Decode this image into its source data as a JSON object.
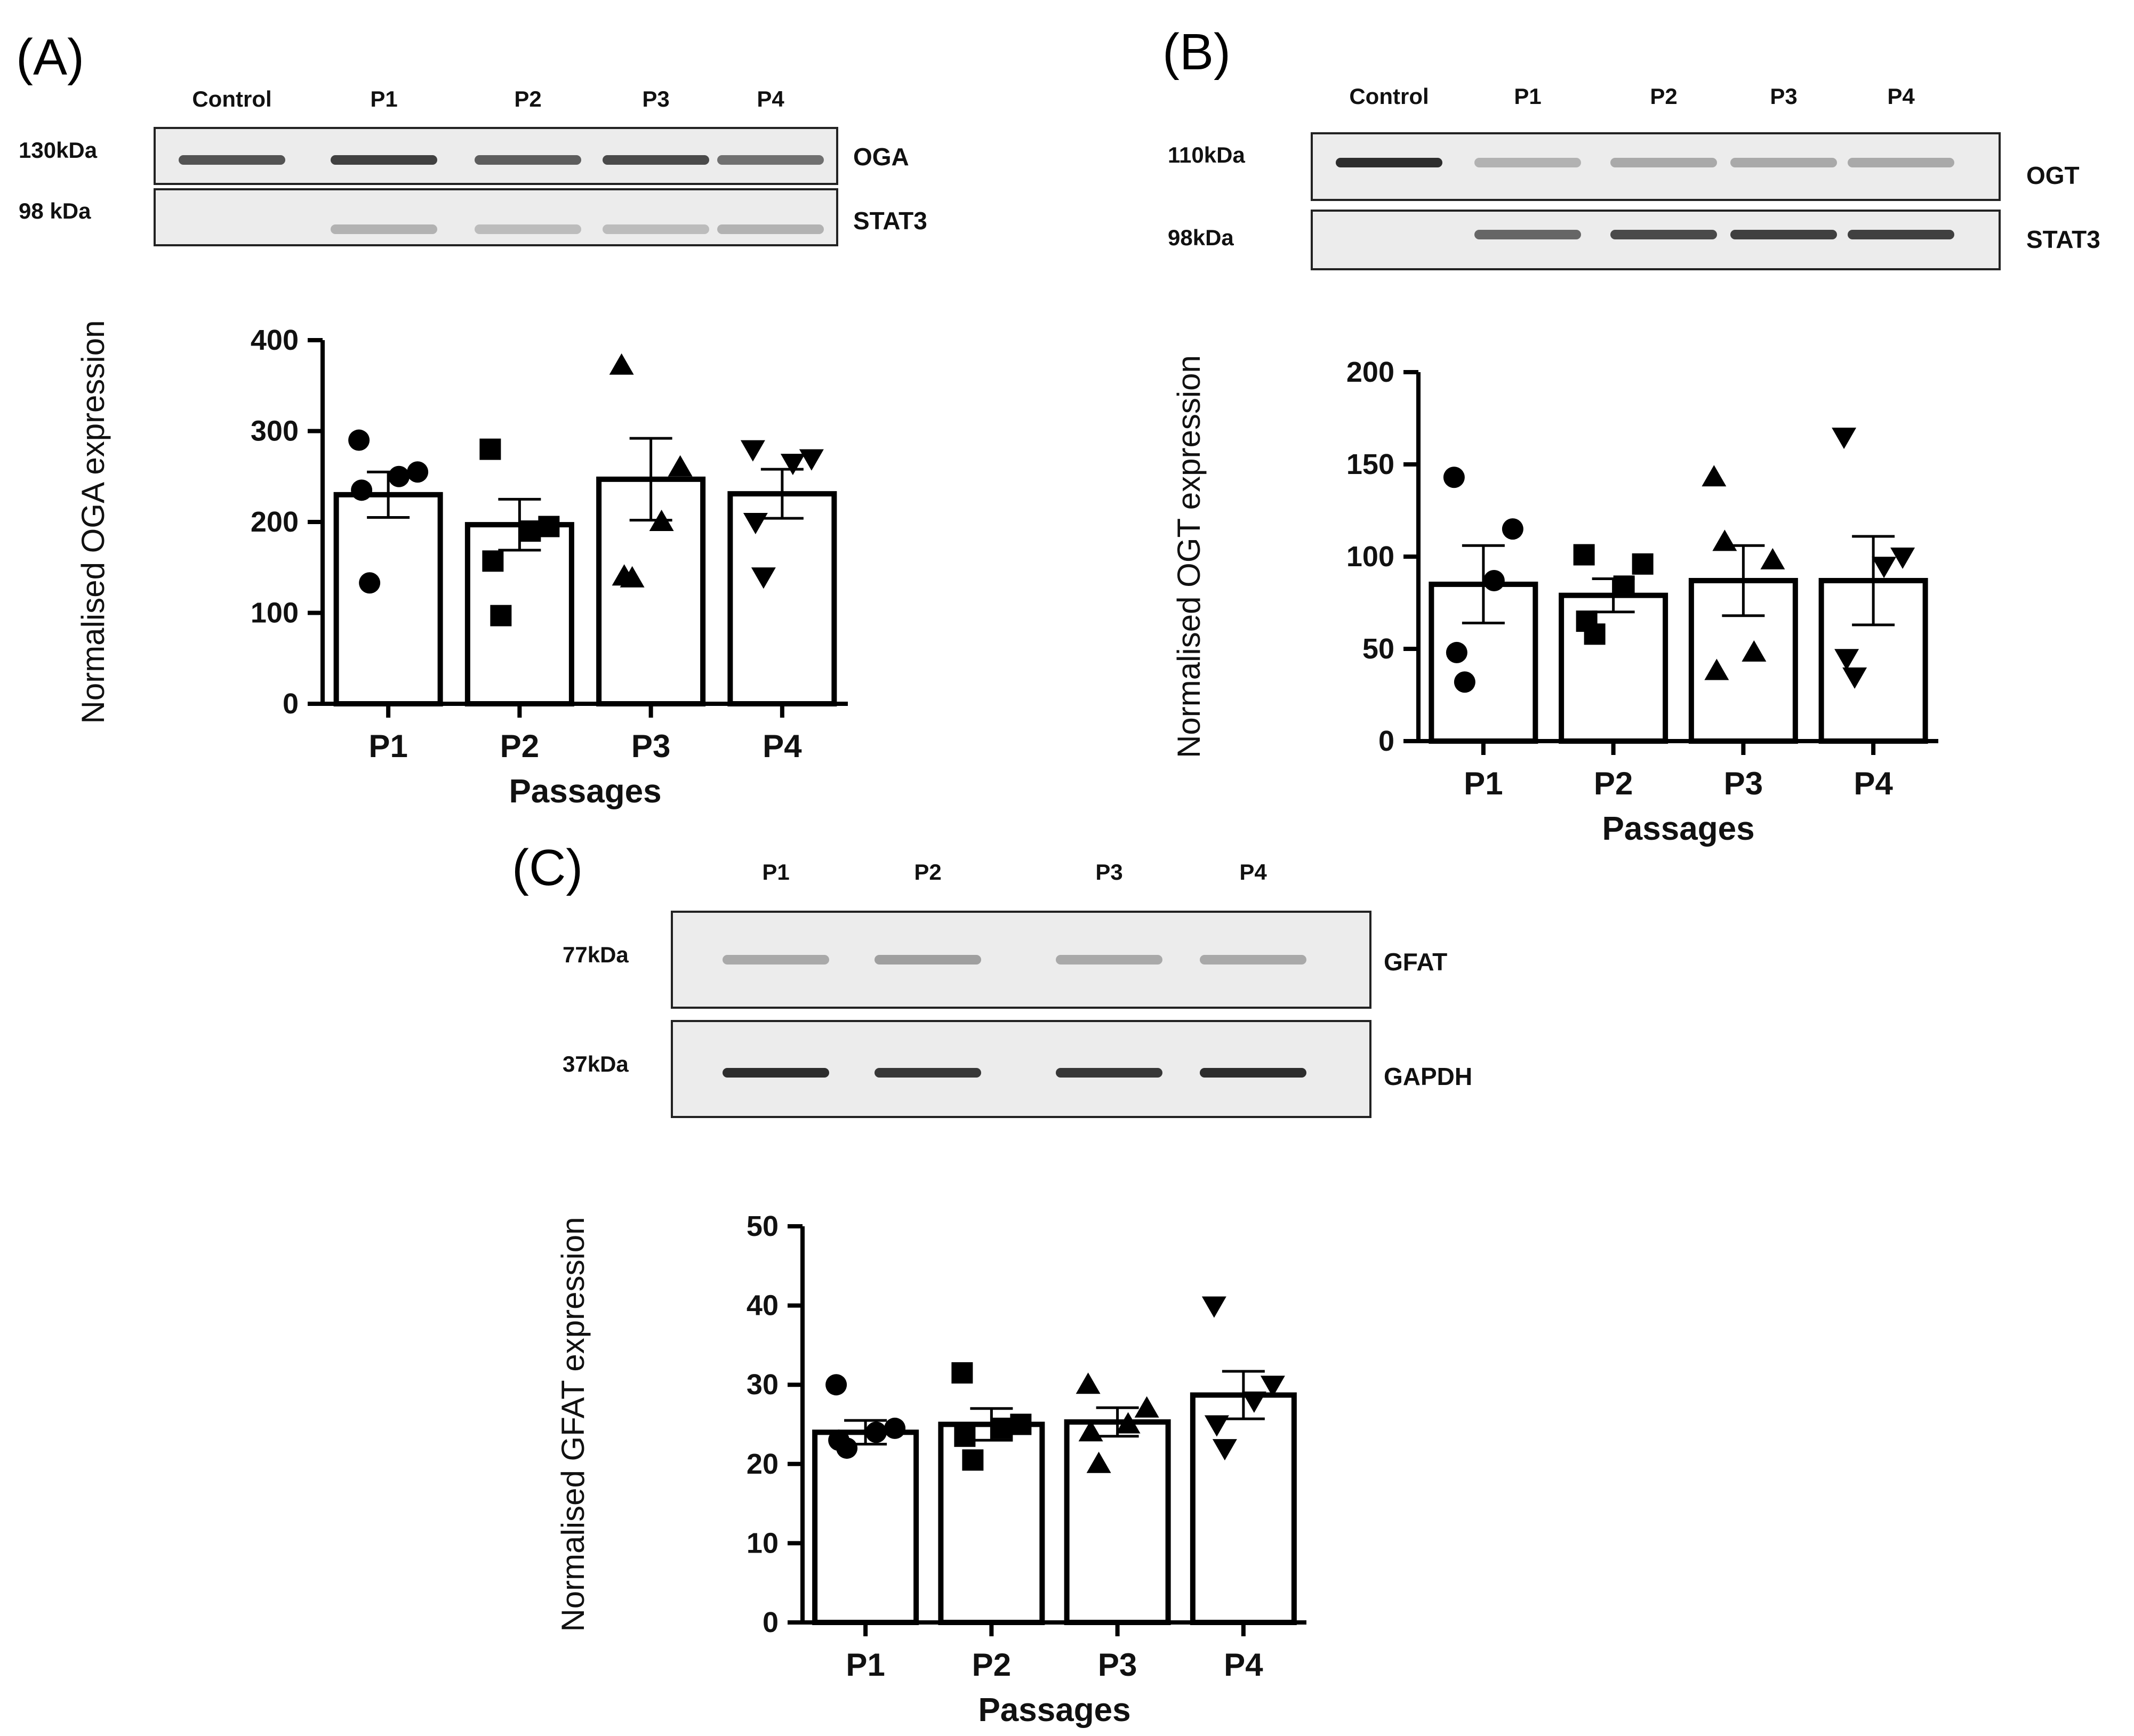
{
  "panels": [
    {
      "letter": "(A)",
      "blot": {
        "lanes": [
          "Control",
          "P1",
          "P2",
          "P3",
          "P4"
        ],
        "rows": [
          {
            "protein": "OGA",
            "size": "130kDa",
            "intensity": [
              0.75,
              0.85,
              0.7,
              0.8,
              0.6
            ]
          },
          {
            "protein": "STAT3",
            "size": "98 kDa",
            "intensity": [
              0.0,
              0.25,
              0.2,
              0.2,
              0.25
            ]
          }
        ]
      },
      "chart_data": {
        "type": "bar",
        "title": "",
        "xlabel": "Passages",
        "ylabel": "Normalised OGA expression",
        "categories": [
          "P1",
          "P2",
          "P3",
          "P4"
        ],
        "values": [
          230,
          197,
          247,
          231
        ],
        "sem": [
          25,
          28,
          45,
          27
        ],
        "points": [
          [
            290,
            255,
            250,
            235,
            133
          ],
          [
            280,
            195,
            190,
            157,
            97
          ],
          [
            372,
            260,
            200,
            140,
            138
          ],
          [
            280,
            270,
            265,
            200,
            140
          ]
        ],
        "markers": [
          "circle",
          "square",
          "triangle-up",
          "triangle-down"
        ],
        "ylim": [
          0,
          400
        ],
        "yticks": [
          0,
          100,
          200,
          300,
          400
        ]
      }
    },
    {
      "letter": "(B)",
      "blot": {
        "lanes": [
          "Control",
          "P1",
          "P2",
          "P3",
          "P4"
        ],
        "rows": [
          {
            "protein": "OGT",
            "size": "110kDa",
            "intensity": [
              0.95,
              0.25,
              0.3,
              0.3,
              0.3
            ]
          },
          {
            "protein": "STAT3",
            "size": "98kDa",
            "intensity": [
              0.0,
              0.65,
              0.8,
              0.85,
              0.85
            ]
          }
        ]
      },
      "chart_data": {
        "type": "bar",
        "title": "",
        "xlabel": "Passages",
        "ylabel": "Normalised OGT expression",
        "categories": [
          "P1",
          "P2",
          "P3",
          "P4"
        ],
        "values": [
          85,
          79,
          87,
          87
        ],
        "sem": [
          21,
          9,
          19,
          24
        ],
        "points": [
          [
            143,
            115,
            87,
            48,
            32
          ],
          [
            101,
            96,
            84,
            65,
            58
          ],
          [
            143,
            98,
            48,
            38,
            108
          ],
          [
            165,
            100,
            95,
            45,
            35
          ]
        ],
        "markers": [
          "circle",
          "square",
          "triangle-up",
          "triangle-down"
        ],
        "ylim": [
          0,
          200
        ],
        "yticks": [
          0,
          50,
          100,
          150,
          200
        ]
      }
    },
    {
      "letter": "(C)",
      "blot": {
        "lanes": [
          "P1",
          "P2",
          "P3",
          "P4"
        ],
        "rows": [
          {
            "protein": "GFAT",
            "size": "77kDa",
            "intensity": [
              0.3,
              0.35,
              0.3,
              0.3
            ]
          },
          {
            "protein": "GAPDH",
            "size": "37kDa",
            "intensity": [
              0.95,
              0.9,
              0.9,
              0.95
            ]
          }
        ]
      },
      "chart_data": {
        "type": "bar",
        "title": "",
        "xlabel": "Passages",
        "ylabel": "Normalised GFAT expression",
        "categories": [
          "P1",
          "P2",
          "P3",
          "P4"
        ],
        "values": [
          24,
          25,
          25.3,
          28.7
        ],
        "sem": [
          1.5,
          2,
          1.8,
          3
        ],
        "points": [
          [
            30,
            24.5,
            24,
            23,
            22
          ],
          [
            31.5,
            25,
            24.5,
            23.5,
            20.5
          ],
          [
            30,
            27,
            25,
            24,
            20
          ],
          [
            40,
            30,
            28,
            25,
            22
          ]
        ],
        "markers": [
          "circle",
          "square",
          "triangle-up",
          "triangle-down"
        ],
        "ylim": [
          0,
          50
        ],
        "yticks": [
          0,
          10,
          20,
          30,
          40,
          50
        ]
      }
    }
  ]
}
